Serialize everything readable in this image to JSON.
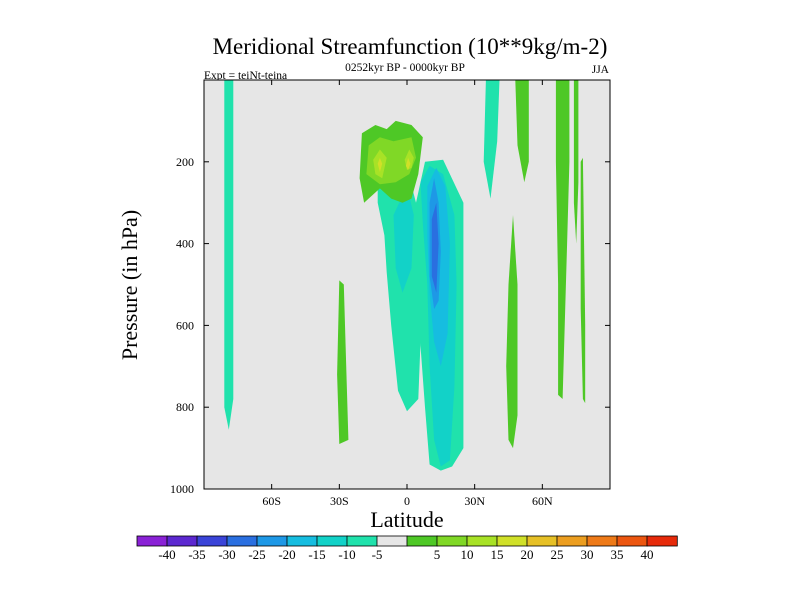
{
  "chart_data": {
    "type": "heatmap",
    "title": "Meridional Streamfunction (10**9kg/m-2)",
    "subtitle": "0252kyr BP - 0000kyr BP",
    "left_annotation": "Expt = teiNt-teina",
    "right_annotation": "JJA",
    "xlabel": "Latitude",
    "ylabel": "Pressure (in hPa)",
    "xlim": [
      -90,
      90
    ],
    "ylim": [
      1000,
      0
    ],
    "x_ticks": [
      {
        "value": -60,
        "label": "60S"
      },
      {
        "value": -30,
        "label": "30S"
      },
      {
        "value": 0,
        "label": "0"
      },
      {
        "value": 30,
        "label": "30N"
      },
      {
        "value": 60,
        "label": "60N"
      }
    ],
    "y_ticks": [
      {
        "value": 200,
        "label": "200"
      },
      {
        "value": 400,
        "label": "400"
      },
      {
        "value": 600,
        "label": "600"
      },
      {
        "value": 800,
        "label": "800"
      },
      {
        "value": 1000,
        "label": "1000"
      }
    ],
    "background_color": "#e6e6e6",
    "colorbar": {
      "colors": [
        "#8a22d6",
        "#5c28d0",
        "#3a44d8",
        "#2a6fe0",
        "#1e98e6",
        "#16bde0",
        "#12d2c8",
        "#20e2ac",
        "#e6e6e6",
        "#4ec826",
        "#80d826",
        "#a8e226",
        "#d0e028",
        "#e6c026",
        "#ec9e20",
        "#ee7a18",
        "#ec5610",
        "#e62a0a"
      ],
      "labels": [
        "-40",
        "-35",
        "-30",
        "-25",
        "-20",
        "-15",
        "-10",
        "-5",
        "5",
        "10",
        "15",
        "20",
        "25",
        "30",
        "35",
        "40"
      ]
    },
    "regions": [
      {
        "level": 7,
        "points": [
          [
            -81,
            0
          ],
          [
            -77,
            0
          ],
          [
            -77,
            780
          ],
          [
            -79,
            855
          ],
          [
            -81,
            800
          ]
        ]
      },
      {
        "level": 9,
        "points": [
          [
            -30,
            490
          ],
          [
            -28,
            500
          ],
          [
            -26,
            880
          ],
          [
            -30,
            890
          ],
          [
            -31,
            720
          ]
        ]
      },
      {
        "level": 7,
        "points": [
          [
            -13,
            210
          ],
          [
            -6,
            190
          ],
          [
            0,
            215
          ],
          [
            4,
            300
          ],
          [
            8,
            360
          ],
          [
            5,
            780
          ],
          [
            0,
            810
          ],
          [
            -4,
            760
          ],
          [
            -7,
            600
          ],
          [
            -9,
            470
          ],
          [
            -10,
            380
          ],
          [
            -13,
            300
          ]
        ]
      },
      {
        "level": 6,
        "points": [
          [
            -6,
            330
          ],
          [
            0,
            260
          ],
          [
            3,
            330
          ],
          [
            2,
            460
          ],
          [
            -2,
            520
          ],
          [
            -5,
            460
          ]
        ]
      },
      {
        "level": 7,
        "points": [
          [
            4,
            300
          ],
          [
            8,
            200
          ],
          [
            16,
            195
          ],
          [
            25,
            300
          ],
          [
            25,
            900
          ],
          [
            20,
            945
          ],
          [
            15,
            955
          ],
          [
            10,
            940
          ],
          [
            8,
            800
          ],
          [
            6,
            650
          ],
          [
            5,
            520
          ],
          [
            4,
            420
          ]
        ]
      },
      {
        "level": 6,
        "points": [
          [
            6,
            250
          ],
          [
            10,
            210
          ],
          [
            16,
            230
          ],
          [
            21,
            330
          ],
          [
            22,
            500
          ],
          [
            21,
            750
          ],
          [
            19,
            930
          ],
          [
            15,
            945
          ],
          [
            12,
            880
          ],
          [
            10,
            700
          ],
          [
            9,
            500
          ],
          [
            7,
            350
          ]
        ]
      },
      {
        "level": 5,
        "points": [
          [
            9,
            260
          ],
          [
            13,
            215
          ],
          [
            17,
            260
          ],
          [
            19,
            400
          ],
          [
            18,
            620
          ],
          [
            15,
            700
          ],
          [
            12,
            640
          ],
          [
            10,
            520
          ],
          [
            9,
            380
          ]
        ]
      },
      {
        "level": 4,
        "points": [
          [
            10,
            300
          ],
          [
            12,
            240
          ],
          [
            14,
            300
          ],
          [
            15,
            420
          ],
          [
            14,
            540
          ],
          [
            12,
            560
          ],
          [
            10,
            480
          ]
        ]
      },
      {
        "level": 3,
        "points": [
          [
            11,
            340
          ],
          [
            13,
            300
          ],
          [
            14,
            400
          ],
          [
            13,
            520
          ],
          [
            11,
            480
          ]
        ]
      },
      {
        "level": 9,
        "points": [
          [
            -20,
            130
          ],
          [
            -14,
            110
          ],
          [
            -9,
            120
          ],
          [
            -5,
            100
          ],
          [
            2,
            110
          ],
          [
            7,
            140
          ],
          [
            5,
            230
          ],
          [
            2,
            290
          ],
          [
            -2,
            300
          ],
          [
            -7,
            290
          ],
          [
            -12,
            265
          ],
          [
            -19,
            300
          ],
          [
            -21,
            240
          ]
        ]
      },
      {
        "level": 10,
        "points": [
          [
            -17,
            160
          ],
          [
            -12,
            140
          ],
          [
            -6,
            150
          ],
          [
            2,
            140
          ],
          [
            4,
            190
          ],
          [
            1,
            230
          ],
          [
            -5,
            250
          ],
          [
            -12,
            255
          ],
          [
            -18,
            230
          ]
        ]
      },
      {
        "level": 11,
        "points": [
          [
            -15,
            195
          ],
          [
            -12,
            170
          ],
          [
            -9,
            190
          ],
          [
            -11,
            240
          ],
          [
            -14,
            230
          ]
        ]
      },
      {
        "level": 11,
        "points": [
          [
            -1,
            195
          ],
          [
            1,
            170
          ],
          [
            3,
            190
          ],
          [
            2,
            215
          ],
          [
            0,
            220
          ]
        ]
      },
      {
        "level": 12,
        "points": [
          [
            -13,
            205
          ],
          [
            -12,
            190
          ],
          [
            -11,
            205
          ],
          [
            -12,
            225
          ]
        ]
      },
      {
        "level": 12,
        "points": [
          [
            -0.5,
            210
          ],
          [
            0.5,
            190
          ],
          [
            1.5,
            205
          ],
          [
            0.5,
            220
          ]
        ]
      },
      {
        "level": 7,
        "points": [
          [
            35,
            0
          ],
          [
            41,
            0
          ],
          [
            40,
            150
          ],
          [
            37,
            290
          ],
          [
            34,
            200
          ]
        ]
      },
      {
        "level": 9,
        "points": [
          [
            48,
            0
          ],
          [
            54,
            0
          ],
          [
            54,
            200
          ],
          [
            52,
            250
          ],
          [
            49,
            160
          ]
        ]
      },
      {
        "level": 9,
        "points": [
          [
            50,
            20
          ],
          [
            52,
            15
          ],
          [
            52,
            100
          ],
          [
            51,
            150
          ],
          [
            50,
            90
          ]
        ]
      },
      {
        "level": 9,
        "points": [
          [
            50,
            40
          ],
          [
            51,
            30
          ],
          [
            51,
            90
          ],
          [
            50,
            110
          ]
        ]
      },
      {
        "level": 9,
        "points": [
          [
            45,
            500
          ],
          [
            47,
            330
          ],
          [
            49,
            500
          ],
          [
            49,
            820
          ],
          [
            47,
            900
          ],
          [
            45,
            880
          ],
          [
            44,
            700
          ]
        ]
      },
      {
        "level": 9,
        "points": [
          [
            66,
            0
          ],
          [
            72,
            0
          ],
          [
            72,
            200
          ],
          [
            71,
            400
          ],
          [
            69,
            780
          ],
          [
            67,
            770
          ],
          [
            67,
            500
          ],
          [
            66,
            200
          ]
        ]
      },
      {
        "level": 9,
        "points": [
          [
            74,
            0
          ],
          [
            76,
            0
          ],
          [
            76,
            250
          ],
          [
            75,
            400
          ],
          [
            74,
            300
          ]
        ]
      },
      {
        "level": 9,
        "points": [
          [
            77,
            200
          ],
          [
            78,
            190
          ],
          [
            79,
            600
          ],
          [
            79,
            790
          ],
          [
            78,
            780
          ],
          [
            77,
            560
          ]
        ]
      }
    ]
  }
}
